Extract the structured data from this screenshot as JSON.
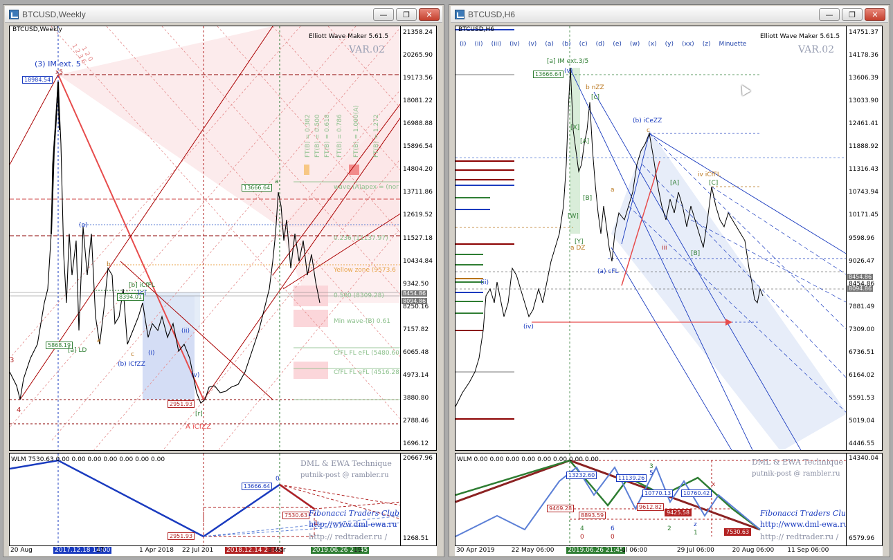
{
  "left": {
    "title": "BTCUSD,Weekly",
    "symbol": "BTCUSD,Weekly",
    "ewm": "Elliott Wave Maker 5.61.5",
    "variant": "VAR.02",
    "yticks": [
      "21358.24",
      "20265.90",
      "19173.56",
      "18081.22",
      "16988.88",
      "15896.54",
      "14804.20",
      "13711.86",
      "12619.52",
      "11527.18",
      "10434.84",
      "9342.50",
      "8250.16",
      "7157.82",
      "6065.48",
      "4973.14",
      "3880.80",
      "2788.46",
      "1696.12"
    ],
    "price_badges": [
      "8454.86",
      "8094.86"
    ],
    "sub_yticks": [
      "20667.96",
      "1268.51"
    ],
    "xticks": [
      {
        "t": "20 Aug"
      },
      {
        "t": "2017.12.18 14:00",
        "hl": "#1a3bbf"
      },
      {
        "t": "17"
      },
      {
        "t": "1 Apr 2018"
      },
      {
        "t": "22 Jul 201"
      },
      {
        "t": "2018.12.14 23:45",
        "hl": "#b22222"
      },
      {
        "t": "3 Mar"
      },
      {
        "t": "2019.06.26 21:45",
        "hl": "#2e7d32"
      },
      {
        "t": "19"
      }
    ],
    "labels": {
      "im": "(3) IM ext. 5",
      "im_x": "x5",
      "w3": "3",
      "w4": "4",
      "a_blue": "(a)",
      "b_icfl": "[b] iCfFL",
      "c_blue": "[c]",
      "b_icfzz": "(b) iCfZZ",
      "a_ld": "[a] LD",
      "b_small": "b",
      "a_small": "a",
      "c_small": "c",
      "i_small": "(i)",
      "ii_small": "(ii)",
      "v_small": "(v)",
      "acfzz": "A iCfZZ",
      "one_bracket": "[r]",
      "wave_a_top": "a",
      "fib_0236": "0.236 (11137.97)",
      "yellow_zone": "Yellow zone (9573.6",
      "fib_0500": "0.500 (8309.28)",
      "min_wave": "Min wave-(B) 0.61",
      "cffl1": "CfFL FL eFL (5480.60)",
      "cffl2": "CfFL FL eFL (4516.28)",
      "apex": "wave-(A)apex = (nor",
      "ft_labels": [
        "FT(B) = 0.382",
        "FT(B) = 0.500",
        "FT(B) = 0.618",
        "FT(B) = 0.786",
        "FT(B) = 1.000(A)",
        "FT(B) = 1.272"
      ],
      "diag1": "1 2 3 6",
      "diag2": "1 2 0"
    },
    "boxes": {
      "top": "18984.54",
      "high": "13666.64",
      "mid": "8394.01",
      "ld": "5868.19",
      "low": "2951.93"
    },
    "sub": {
      "wlm": "WLM 7530.63 0.00 0.00 0.00 0.00 0.00 0.00 0.00",
      "box_high": "13666.64",
      "box_last": "7530.63",
      "box_low": "2951.93",
      "zero": "0",
      "one": "1",
      "sig1": "DML & EWA Technique",
      "sig2": "putnik-post @ rambler.ru",
      "sig3": "Fibonacci Traders Club",
      "sig4": "http://www.dml-ewa.ru",
      "sig5": "http:// redtrader.ru /"
    }
  },
  "right": {
    "title": "BTCUSD,H6",
    "symbol": "BTCUSD,H6",
    "ewm": "Elliott Wave Maker 5.61.5",
    "variant": "VAR.02",
    "waves": [
      "(i)",
      "(ii)",
      "(iii)",
      "(iv)",
      "(v)",
      "(a)",
      "(b)",
      "(c)",
      "(d)",
      "(e)",
      "(w)",
      "(x)",
      "(y)",
      "(xx)",
      "(z)",
      "Minuette"
    ],
    "yticks": [
      "14751.37",
      "14178.36",
      "13606.39",
      "13033.90",
      "12461.41",
      "11888.92",
      "11316.43",
      "10743.94",
      "10171.45",
      "9598.96",
      "9026.47",
      "8454.86",
      "7881.49",
      "7309.00",
      "6736.51",
      "6164.02",
      "5591.53",
      "5019.04",
      "4446.55"
    ],
    "price_badges": [
      "8454.86",
      "8094.86"
    ],
    "sub_yticks": [
      "14340.04",
      "6579.96"
    ],
    "xticks": [
      {
        "t": "30 Apr 2019"
      },
      {
        "t": "22 May 06:00"
      },
      {
        "t": "2019.06.26 21:45",
        "hl": "#2e7d32"
      },
      {
        "t": "ul 06:00"
      },
      {
        "t": "29 Jul 06:00"
      },
      {
        "t": "20 Aug 06:00"
      },
      {
        "t": "11 Sep 06:00"
      }
    ],
    "labels": {
      "im": "[a] IM ext.3/5",
      "bnzz": "b nZZ",
      "bice": "(b) iCeZZ",
      "ivcffl": "iv iCfFL",
      "adz": "a DZ",
      "acfl": "(a) cFL",
      "a_small": "a",
      "c_small": "c",
      "iii": "iii",
      "iv_blue": "(iv)",
      "ii_blue": "(ii)",
      "v_bracket": "(v)",
      "c_bracket": "[c]",
      "x_bracket": "[X]",
      "a_bracket": "[A]",
      "b_bracket": "[B]",
      "w_bracket": "[W]",
      "y_bracket": "[Y]",
      "a_bracket2": "[A]",
      "b_bracket2": "[B]",
      "c_bracket2": "[C]"
    },
    "boxes": {
      "high": "13666.64"
    },
    "sub": {
      "wlm": "WLM 0.00 0.00 0.00 0.00 0.00 0.00 0.00 0.00",
      "b1": "13232.60",
      "b2": "11139.26",
      "b3": "10770.13",
      "b4": "10760.42",
      "b5": "9469.28",
      "b6": "8893.59",
      "b7": "9612.82",
      "b8": "9425.58",
      "b9": "7530.63",
      "sig1": "DML & EWA Technique",
      "sig2": "putnik-post @ rambler.ru",
      "sig3": "Fibonacci Traders Club",
      "sig4": "http://www.dml-ewa.ru",
      "sig5": "http:// redtrader.ru /",
      "n3": "3",
      "n5": "5",
      "n4": "4",
      "n6": "6",
      "n0a": "0",
      "n0b": "0",
      "n2": "2",
      "nz": "z",
      "n1": "1",
      "nx": "x"
    }
  }
}
